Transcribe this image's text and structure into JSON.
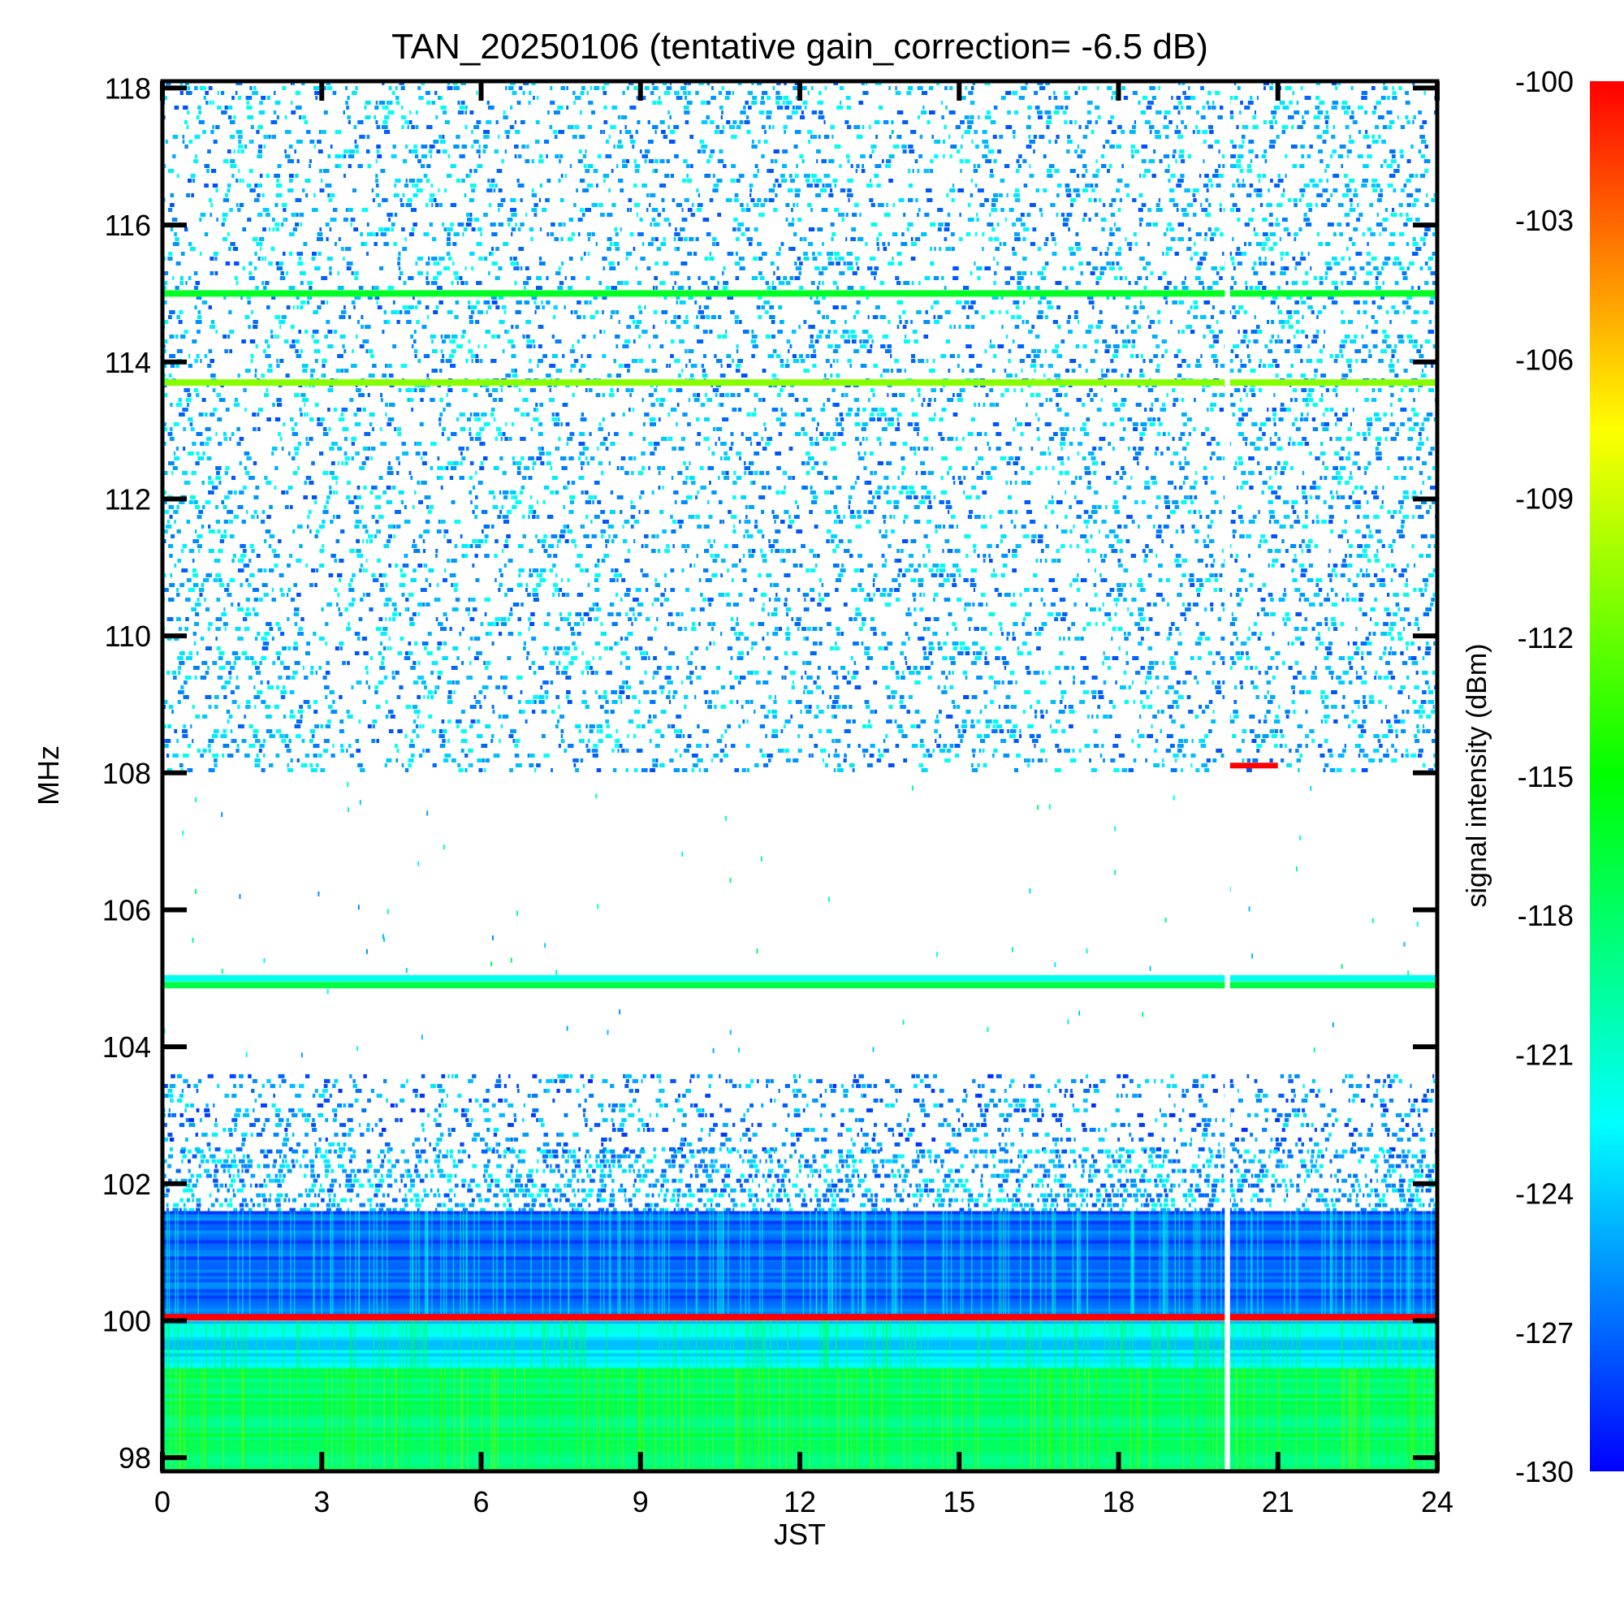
{
  "chart_data": {
    "type": "heatmap",
    "title": "TAN_20250106 (tentative gain_correction= -6.5 dB)",
    "xlabel": "JST",
    "ylabel": "MHz",
    "colorbar_label": "signal intensity (dBm)",
    "xlim": [
      0,
      24
    ],
    "ylim": [
      97.8,
      118.1
    ],
    "x_ticks": [
      0,
      3,
      6,
      9,
      12,
      15,
      18,
      21,
      24
    ],
    "y_ticks": [
      98,
      100,
      102,
      104,
      106,
      108,
      110,
      112,
      114,
      116,
      118
    ],
    "colorbar_range": [
      -130,
      -100
    ],
    "colorbar_ticks": [
      -100,
      -103,
      -106,
      -109,
      -112,
      -115,
      -118,
      -121,
      -124,
      -127,
      -130
    ],
    "colormap": [
      "#0000ff",
      "#00ffff",
      "#00ff00",
      "#ffff00",
      "#ff0000"
    ],
    "grid": false,
    "data_gaps_jst": [
      [
        20.0,
        20.1
      ]
    ],
    "persistent_signals": [
      {
        "freq_mhz": 115.0,
        "level_dbm": -116
      },
      {
        "freq_mhz": 113.7,
        "level_dbm": -111
      },
      {
        "freq_mhz": 105.0,
        "level_dbm": -122
      },
      {
        "freq_mhz": 104.9,
        "level_dbm": -117
      },
      {
        "freq_mhz": 100.05,
        "level_dbm": -100
      }
    ],
    "intermittent_signals": [
      {
        "freq_mhz": 108.1,
        "start_jst": 20.0,
        "end_jst": 21.0,
        "level_dbm": -100
      }
    ],
    "background_bands": [
      {
        "freq_range_mhz": [
          108.0,
          118.1
        ],
        "description": "sparse noise",
        "level_dbm": -126
      },
      {
        "freq_range_mhz": [
          102.5,
          103.6
        ],
        "description": "sparse noise",
        "level_dbm": -127
      },
      {
        "freq_range_mhz": [
          101.6,
          102.5
        ],
        "description": "dense noise",
        "level_dbm": -126
      },
      {
        "freq_range_mhz": [
          100.1,
          101.6
        ],
        "description": "continuous",
        "level_dbm": -127
      },
      {
        "freq_range_mhz": [
          99.3,
          100.0
        ],
        "description": "continuous",
        "level_dbm": -123
      },
      {
        "freq_range_mhz": [
          97.8,
          99.3
        ],
        "description": "continuous",
        "level_dbm": -118
      }
    ]
  }
}
